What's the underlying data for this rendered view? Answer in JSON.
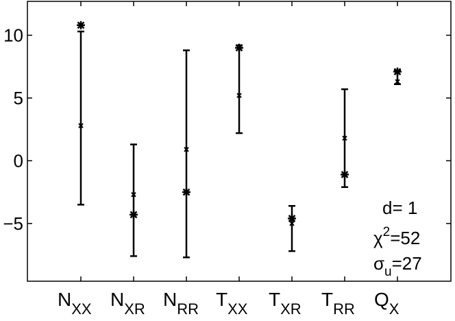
{
  "chart_data": {
    "type": "errorbar",
    "categories": [
      {
        "main": "N",
        "sub": "XX"
      },
      {
        "main": "N",
        "sub": "XR"
      },
      {
        "main": "N",
        "sub": "RR"
      },
      {
        "main": "T",
        "sub": "XX"
      },
      {
        "main": "T",
        "sub": "XR"
      },
      {
        "main": "T",
        "sub": "RR"
      },
      {
        "main": "Q",
        "sub": "X"
      }
    ],
    "series": [
      {
        "marker": "x",
        "values": [
          2.8,
          -2.7,
          0.9,
          5.2,
          -5.0,
          1.8,
          6.3
        ],
        "low": [
          -3.5,
          -7.6,
          -7.7,
          2.2,
          -7.2,
          -2.1,
          6.1
        ],
        "high": [
          10.3,
          1.3,
          8.8,
          9.2,
          -3.6,
          5.7,
          7.2
        ]
      },
      {
        "marker": "asterisk",
        "values": [
          10.8,
          -4.3,
          -2.5,
          9.0,
          -4.6,
          -1.1,
          7.1
        ]
      }
    ],
    "yticks": [
      10,
      5,
      0,
      -5
    ],
    "ytick_labels": [
      "10",
      "5",
      "0",
      "−5"
    ],
    "ylim": [
      -9.6,
      12.7
    ],
    "annotation": {
      "d": "d= 1",
      "chi_main": "χ",
      "chi_sup": "2",
      "chi_val": "=52",
      "sigma_main": "σ",
      "sigma_sub": "u",
      "sigma_val": "=27"
    }
  }
}
